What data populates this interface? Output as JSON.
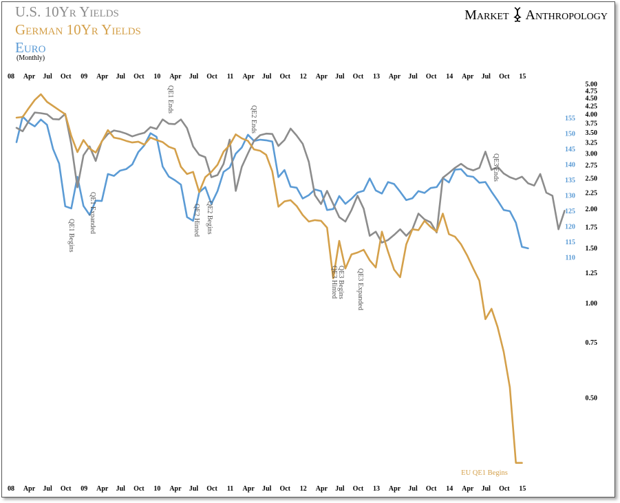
{
  "titles": {
    "line1": "U.S. 10Yr Yields",
    "line2": "German 10Yr Yields",
    "line3": "Euro",
    "line4": "(Monthly)"
  },
  "brand": {
    "left": "Market",
    "right": "Anthropology"
  },
  "colors": {
    "us": "#8c8c8c",
    "german": "#d4a04a",
    "euro": "#5b9bd5",
    "axis_yield": "#000000",
    "axis_euro": "#5b9bd5"
  },
  "chart_data": {
    "type": "line",
    "x_tick_labels": [
      "08",
      "Apr",
      "Jul",
      "Oct",
      "09",
      "Apr",
      "Jul",
      "Oct",
      "10",
      "Apr",
      "Jul",
      "Oct",
      "11",
      "Apr",
      "Jul",
      "Oct",
      "12",
      "Apr",
      "Jul",
      "Oct",
      "13",
      "Apr",
      "Jul",
      "Oct",
      "14",
      "Apr",
      "Jul",
      "Oct",
      "15"
    ],
    "x_range": [
      "2008-01",
      "2015-03"
    ],
    "y_axis_yield": {
      "scale": "log",
      "ticks": [
        "5.00",
        "4.75",
        "4.50",
        "4.25",
        "4.00",
        "3.75",
        "3.50",
        "3.25",
        "3.00",
        "2.75",
        "2.50",
        "2.25",
        "2.00",
        "1.75",
        "1.50",
        "1.25",
        "1.00",
        "0.75",
        "0.50"
      ]
    },
    "y_axis_euro": {
      "ticks": [
        "155",
        "150",
        "145",
        "140",
        "135",
        "130",
        "125",
        "120",
        "115",
        "110"
      ]
    },
    "series": [
      {
        "name": "U.S. 10Yr Yields",
        "axis": "yield",
        "start": "2008-01",
        "values": [
          3.62,
          3.53,
          3.8,
          4.05,
          4.03,
          4.0,
          3.86,
          3.85,
          4.01,
          3.21,
          2.34,
          2.96,
          3.16,
          2.84,
          3.28,
          3.46,
          3.55,
          3.52,
          3.47,
          3.4,
          3.45,
          3.49,
          3.64,
          3.59,
          3.85,
          3.73,
          3.72,
          3.85,
          3.61,
          3.16,
          2.97,
          2.92,
          2.52,
          2.56,
          2.78,
          3.32,
          2.28,
          2.72,
          3.0,
          3.29,
          3.43,
          3.47,
          3.46,
          3.17,
          3.31,
          3.6,
          3.42,
          3.22,
          2.82,
          2.21,
          2.07,
          2.28,
          2.07,
          1.88,
          1.82,
          1.98,
          2.2,
          2.0,
          1.64,
          1.69,
          1.56,
          1.59,
          1.65,
          1.72,
          1.64,
          1.72,
          1.93,
          1.85,
          1.81,
          1.68,
          2.51,
          2.6,
          2.7,
          2.78,
          2.69,
          2.65,
          2.7,
          3.04,
          2.66,
          2.72,
          2.59,
          2.52,
          2.48,
          2.53,
          2.41,
          2.37,
          2.58,
          2.25,
          2.2,
          1.72,
          1.97
        ]
      },
      {
        "name": "German 10Yr Yields",
        "axis": "yield",
        "start": "2008-01",
        "values": [
          3.9,
          3.92,
          4.18,
          4.44,
          4.63,
          4.38,
          4.25,
          4.12,
          4.0,
          3.41,
          3.03,
          3.31,
          3.11,
          3.02,
          3.27,
          3.56,
          3.37,
          3.34,
          3.29,
          3.25,
          3.27,
          3.2,
          3.37,
          3.31,
          3.26,
          3.15,
          3.1,
          2.72,
          2.58,
          2.62,
          2.26,
          2.52,
          2.62,
          2.76,
          3.04,
          3.19,
          3.45,
          3.35,
          3.29,
          3.09,
          3.06,
          2.97,
          2.63,
          2.03,
          2.11,
          2.13,
          2.04,
          1.91,
          1.82,
          1.84,
          1.83,
          1.74,
          1.2,
          1.58,
          1.29,
          1.43,
          1.45,
          1.48,
          1.37,
          1.3,
          1.69,
          1.46,
          1.28,
          1.21,
          1.54,
          1.72,
          1.71,
          1.83,
          1.75,
          1.69,
          1.93,
          1.66,
          1.63,
          1.54,
          1.42,
          1.29,
          1.18,
          0.89,
          0.96,
          0.84,
          0.7,
          0.54,
          0.31,
          0.31
        ]
      },
      {
        "name": "Euro",
        "axis": "euro",
        "start": "2008-01",
        "values": [
          147.2,
          155.5,
          153.5,
          152.3,
          154.5,
          152.8,
          145.0,
          140.3,
          126.5,
          125.8,
          136.0,
          126.6,
          123.7,
          128.3,
          128.2,
          136.9,
          136.3,
          138.0,
          138.5,
          140.0,
          144.0,
          146.2,
          150.1,
          148.9,
          139.3,
          136.1,
          134.9,
          133.5,
          123.0,
          121.8,
          131.0,
          132.7,
          127.3,
          131.4,
          137.6,
          139.0,
          143.5,
          145.5,
          149.6,
          147.6,
          148.0,
          147.8,
          147.4,
          135.9,
          138.2,
          132.8,
          132.5,
          129.0,
          130.1,
          131.9,
          131.4,
          125.3,
          125.6,
          129.8,
          127.3,
          128.9,
          130.9,
          131.5,
          135.5,
          131.6,
          130.6,
          134.3,
          133.7,
          131.2,
          128.5,
          129.1,
          131.4,
          130.8,
          132.4,
          132.7,
          135.6,
          134.2,
          138.3,
          138.5,
          136.3,
          136.0,
          134.1,
          134.3,
          131.2,
          128.4,
          125.3,
          124.9,
          121.2,
          113.4,
          112.9
        ]
      }
    ],
    "annotations": [
      {
        "label": "QE1 Begins",
        "series": "U.S. 10Yr Yields"
      },
      {
        "label": "QE1 Expanded",
        "series": "U.S. 10Yr Yields"
      },
      {
        "label": "QE1 Ends",
        "series": "U.S. 10Yr Yields"
      },
      {
        "label": "QE2 Hinted",
        "series": "U.S. 10Yr Yields"
      },
      {
        "label": "QE2 Begins",
        "series": "U.S. 10Yr Yields"
      },
      {
        "label": "QE2 Ends",
        "series": "U.S. 10Yr Yields"
      },
      {
        "label": "QE3 Hinted",
        "series": "U.S. 10Yr Yields"
      },
      {
        "label": "QE3 Begins",
        "series": "U.S. 10Yr Yields"
      },
      {
        "label": "QE3 Expanded",
        "series": "U.S. 10Yr Yields"
      },
      {
        "label": "QE3 Ends",
        "series": "U.S. 10Yr Yields"
      },
      {
        "label": "EU QE1 Begins",
        "series": "German 10Yr Yields"
      }
    ],
    "grid": false,
    "legend": "none (series titles at top-left)"
  }
}
